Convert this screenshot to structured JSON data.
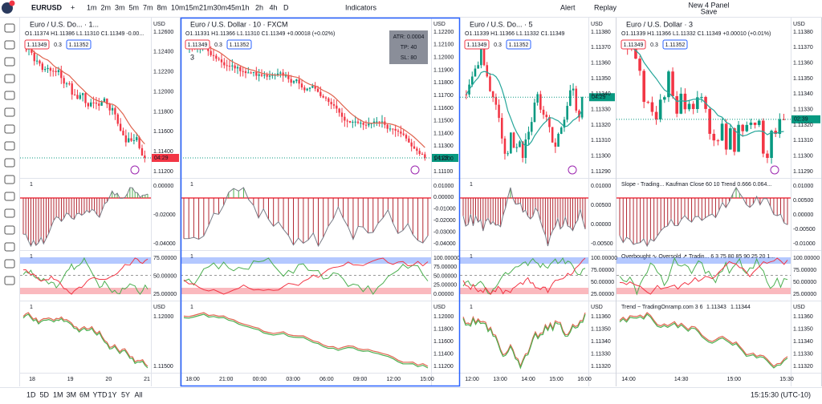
{
  "header": {
    "symbol": "EURUSD",
    "intervals": [
      "1m",
      "2m",
      "3m",
      "5m",
      "7m",
      "8m",
      "10m",
      "15m",
      "21m",
      "30m",
      "45m",
      "1h",
      "2h",
      "4h",
      "D"
    ],
    "active_interval": "10m",
    "indicators": "Indicators",
    "alert": "Alert",
    "replay": "Replay",
    "layout_name": "New 4 Panel",
    "layout_status": "Save"
  },
  "panels": [
    {
      "title": "Euro / U.S. Do... · 1...",
      "ohlc": "O1.11374 H1.11386 L1.11310 C1.11349 -0.00...",
      "orders": [
        "1.11349",
        "0.3",
        "1.11352"
      ],
      "axis_unit": "USD",
      "price_labels": [
        "1.12600",
        "1.12400",
        "1.12200",
        "1.12000",
        "1.11800",
        "1.11600",
        "1.11400",
        "1.11200"
      ],
      "countdown": "04:29",
      "panes": [
        {
          "count": 1,
          "labels": [
            "0.00000",
            "-0.02000",
            "-0.04000"
          ]
        },
        {
          "count": 1,
          "labels": [
            "75.00000",
            "50.00000",
            "25.00000"
          ]
        },
        {
          "count": 1,
          "unit": "USD",
          "labels": [
            "1.12000",
            "1.11500"
          ]
        }
      ],
      "time_labels": [
        "18",
        "19",
        "20",
        "21"
      ]
    },
    {
      "title": "Euro / U.S. Dollar · 10 · FXCM",
      "ohlc": "O1.11331 H1.11366 L1.11310 C1.11349 +0.00018 (+0.02%)",
      "orders": [
        "1.11349",
        "0.3",
        "1.11352"
      ],
      "legend_count": 3,
      "info_box": [
        "ATR: 0.0004",
        "TP: 40",
        "SL: 80"
      ],
      "axis_unit": "USD",
      "price_labels": [
        "1.12200",
        "1.12100",
        "1.12000",
        "1.11900",
        "1.11800",
        "1.11700",
        "1.11600",
        "1.11500",
        "1.11400",
        "1.11300",
        "1.11200",
        "1.11100"
      ],
      "countdown": "04:29",
      "panes": [
        {
          "count": 1,
          "labels": [
            "0.01000",
            "0.00000",
            "-0.01000",
            "-0.02000",
            "-0.03000",
            "-0.04000"
          ]
        },
        {
          "count": 1,
          "labels": [
            "100.00000",
            "75.00000",
            "50.00000",
            "25.00000",
            "0.00000"
          ]
        },
        {
          "count": 1,
          "unit": "USD",
          "labels": [
            "1.12000",
            "1.11800",
            "1.11600",
            "1.11400",
            "1.11200"
          ]
        }
      ],
      "time_labels": [
        "18:00",
        "21:00",
        "00:00",
        "03:00",
        "06:00",
        "09:00",
        "12:00",
        "15:00"
      ]
    },
    {
      "title": "Euro / U.S. Do... · 5",
      "ohlc": "O1.11339 H1.11366 L1.11332 C1.11349",
      "orders": [
        "1.11349",
        "0.3",
        "1.11352"
      ],
      "axis_unit": "USD",
      "price_labels": [
        "1.11380",
        "1.11370",
        "1.11360",
        "1.11350",
        "1.11340",
        "1.11330",
        "1.11320",
        "1.11310",
        "1.11300",
        "1.11290"
      ],
      "countdown": "04:29",
      "panes": [
        {
          "count": 1,
          "labels": [
            "0.01000",
            "0.00500",
            "0.00000",
            "-0.00500"
          ]
        },
        {
          "count": 1,
          "labels": [
            "100.00000",
            "75.00000",
            "50.00000",
            "25.00000"
          ]
        },
        {
          "count": 1,
          "unit": "USD",
          "labels": [
            "1.11360",
            "1.11350",
            "1.11340",
            "1.11330",
            "1.11320"
          ]
        }
      ],
      "time_labels": [
        "12:00",
        "13:00",
        "14:00",
        "15:00",
        "16:00"
      ]
    },
    {
      "title": "Euro / U.S. Dollar · 3",
      "ohlc": "O1.11339 H1.11366 L1.11332 C1.11349 +0.00010 (+0.01%)",
      "orders": [
        "1.11349",
        "0.3",
        "1.11352"
      ],
      "axis_unit": "USD",
      "price_labels": [
        "1.11380",
        "1.11370",
        "1.11360",
        "1.11350",
        "1.11340",
        "1.11330",
        "1.11320",
        "1.11310",
        "1.11300",
        "1.11290"
      ],
      "countdown": "02:39",
      "panes": [
        {
          "title": "Slope - Trading...  Kaufman Close 60 10 Trend 0.666 0.064...",
          "labels": [
            "0.01000",
            "0.00500",
            "0.00000",
            "-0.00500",
            "-0.01000"
          ]
        },
        {
          "title": "Overbought ∿ Oversold ↗ Tradin...  6 3 75 80 85 90 25 20 1...",
          "labels": [
            "100.00000",
            "75.00000",
            "50.00000",
            "25.00000"
          ]
        },
        {
          "title": "Trend − TradingOnramp.com  3 6",
          "values_text": [
            "1.11343",
            "1.11344"
          ],
          "unit": "USD",
          "labels": [
            "1.11360",
            "1.11350",
            "1.11340",
            "1.11330",
            "1.11320"
          ]
        }
      ],
      "time_labels": [
        "14:00",
        "14:30",
        "15:00",
        "15:30"
      ]
    }
  ],
  "footer": {
    "ranges": [
      "1D",
      "5D",
      "1M",
      "3M",
      "6M",
      "YTD",
      "1Y",
      "5Y",
      "All"
    ],
    "clock": "15:15:30 (UTC-10)"
  }
}
